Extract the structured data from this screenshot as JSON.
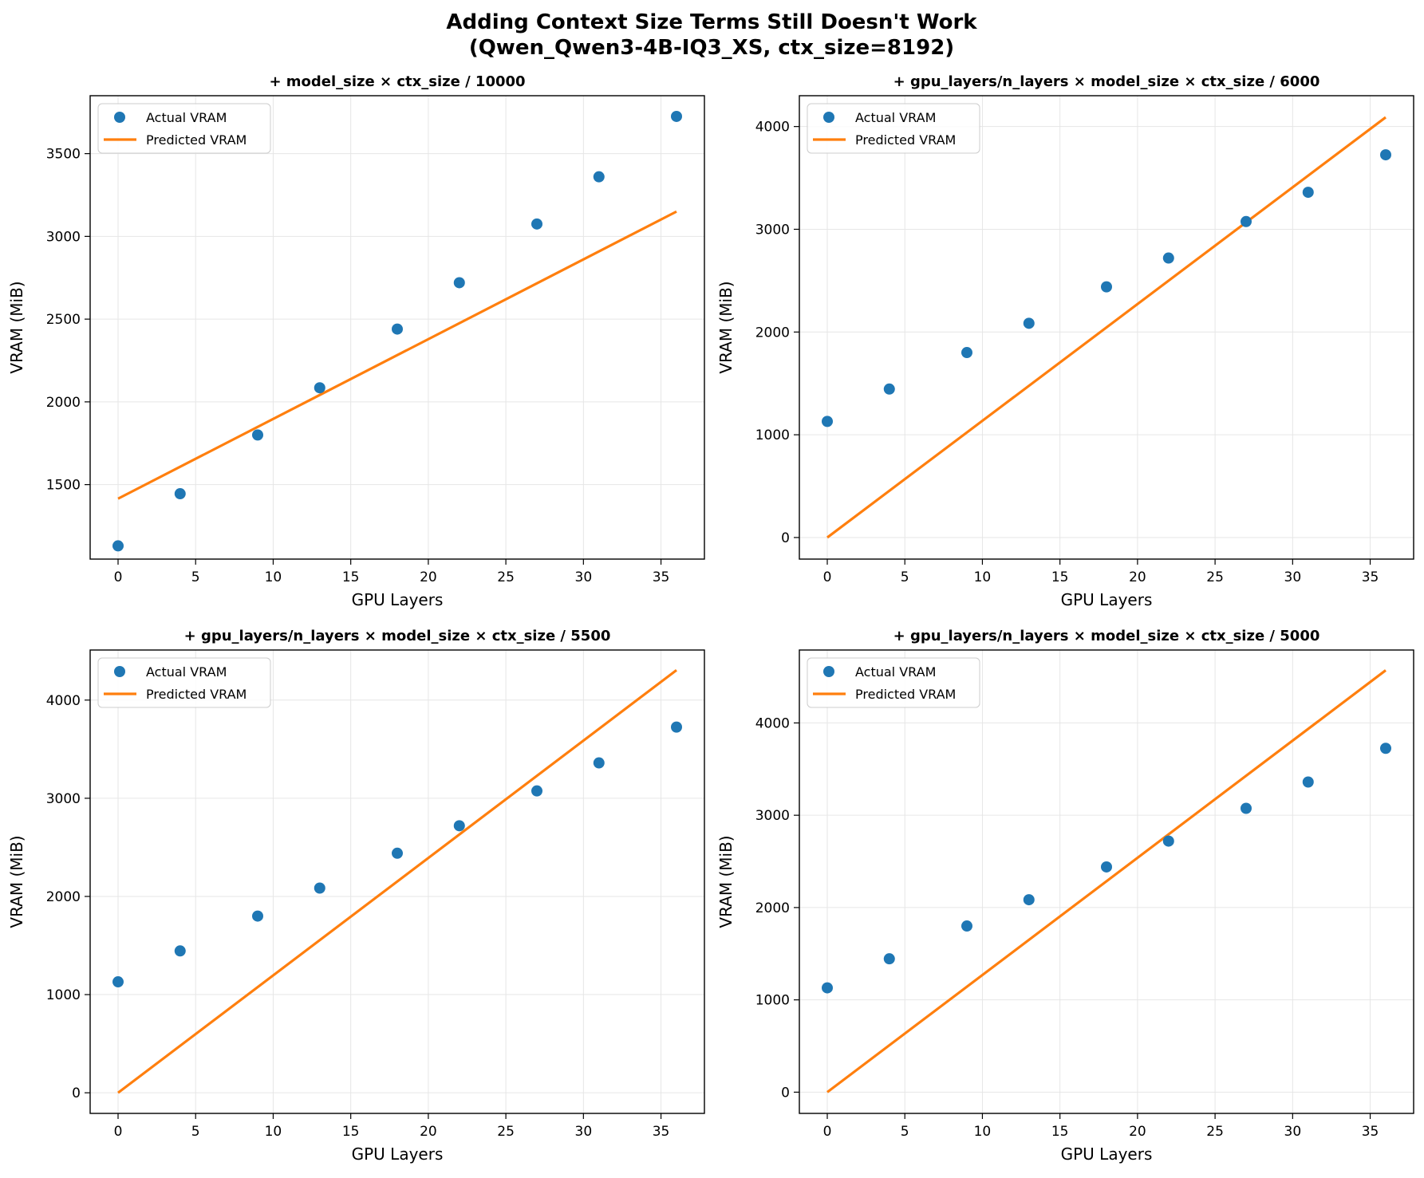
{
  "figure": {
    "title_line1": "Adding Context Size Terms Still Doesn't Work",
    "title_line2": "(Qwen_Qwen3-4B-IQ3_XS, ctx_size=8192)"
  },
  "colors": {
    "actual": "#1f77b4",
    "predicted": "#ff7f0e",
    "grid": "#e6e6e6",
    "axis": "#000000"
  },
  "chart_data": [
    {
      "type": "scatter+line",
      "title": "+ model_size × ctx_size / 10000",
      "xlabel": "GPU Layers",
      "ylabel": "VRAM (MiB)",
      "xlim": [
        -1.8,
        37.8
      ],
      "ylim": [
        1050,
        3850
      ],
      "xticks": [
        0,
        5,
        10,
        15,
        20,
        25,
        30,
        35
      ],
      "yticks": [
        1500,
        2000,
        2500,
        3000,
        3500
      ],
      "grid": true,
      "legend": "upper-left",
      "series": [
        {
          "name": "Actual VRAM",
          "kind": "scatter",
          "x": [
            0,
            4,
            9,
            13,
            18,
            22,
            27,
            31,
            36
          ],
          "y": [
            1130,
            1445,
            1800,
            2085,
            2440,
            2720,
            3075,
            3360,
            3725
          ]
        },
        {
          "name": "Predicted VRAM",
          "kind": "line",
          "x": [
            0,
            36
          ],
          "y": [
            1415,
            3150
          ]
        }
      ]
    },
    {
      "type": "scatter+line",
      "title": "+ gpu_layers/n_layers × model_size × ctx_size / 6000",
      "xlabel": "GPU Layers",
      "ylabel": "VRAM (MiB)",
      "xlim": [
        -1.8,
        37.8
      ],
      "ylim": [
        -210,
        4300
      ],
      "xticks": [
        0,
        5,
        10,
        15,
        20,
        25,
        30,
        35
      ],
      "yticks": [
        0,
        1000,
        2000,
        3000,
        4000
      ],
      "grid": true,
      "legend": "upper-left",
      "series": [
        {
          "name": "Actual VRAM",
          "kind": "scatter",
          "x": [
            0,
            4,
            9,
            13,
            18,
            22,
            27,
            31,
            36
          ],
          "y": [
            1130,
            1445,
            1800,
            2085,
            2440,
            2720,
            3075,
            3360,
            3725
          ]
        },
        {
          "name": "Predicted VRAM",
          "kind": "line",
          "x": [
            0,
            36
          ],
          "y": [
            0,
            4090
          ]
        }
      ]
    },
    {
      "type": "scatter+line",
      "title": "+ gpu_layers/n_layers × model_size × ctx_size / 5500",
      "xlabel": "GPU Layers",
      "ylabel": "VRAM (MiB)",
      "xlim": [
        -1.8,
        37.8
      ],
      "ylim": [
        -210,
        4510
      ],
      "xticks": [
        0,
        5,
        10,
        15,
        20,
        25,
        30,
        35
      ],
      "yticks": [
        0,
        1000,
        2000,
        3000,
        4000
      ],
      "grid": true,
      "legend": "upper-left",
      "series": [
        {
          "name": "Actual VRAM",
          "kind": "scatter",
          "x": [
            0,
            4,
            9,
            13,
            18,
            22,
            27,
            31,
            36
          ],
          "y": [
            1130,
            1445,
            1800,
            2085,
            2440,
            2720,
            3075,
            3360,
            3725
          ]
        },
        {
          "name": "Predicted VRAM",
          "kind": "line",
          "x": [
            0,
            36
          ],
          "y": [
            0,
            4305
          ]
        }
      ]
    },
    {
      "type": "scatter+line",
      "title": "+ gpu_layers/n_layers × model_size × ctx_size / 5000",
      "xlabel": "GPU Layers",
      "ylabel": "VRAM (MiB)",
      "xlim": [
        -1.8,
        37.8
      ],
      "ylim": [
        -230,
        4790
      ],
      "xticks": [
        0,
        5,
        10,
        15,
        20,
        25,
        30,
        35
      ],
      "yticks": [
        0,
        1000,
        2000,
        3000,
        4000
      ],
      "grid": true,
      "legend": "upper-left",
      "series": [
        {
          "name": "Actual VRAM",
          "kind": "scatter",
          "x": [
            0,
            4,
            9,
            13,
            18,
            22,
            27,
            31,
            36
          ],
          "y": [
            1130,
            1445,
            1800,
            2085,
            2440,
            2720,
            3075,
            3360,
            3725
          ]
        },
        {
          "name": "Predicted VRAM",
          "kind": "line",
          "x": [
            0,
            36
          ],
          "y": [
            0,
            4570
          ]
        }
      ]
    }
  ]
}
